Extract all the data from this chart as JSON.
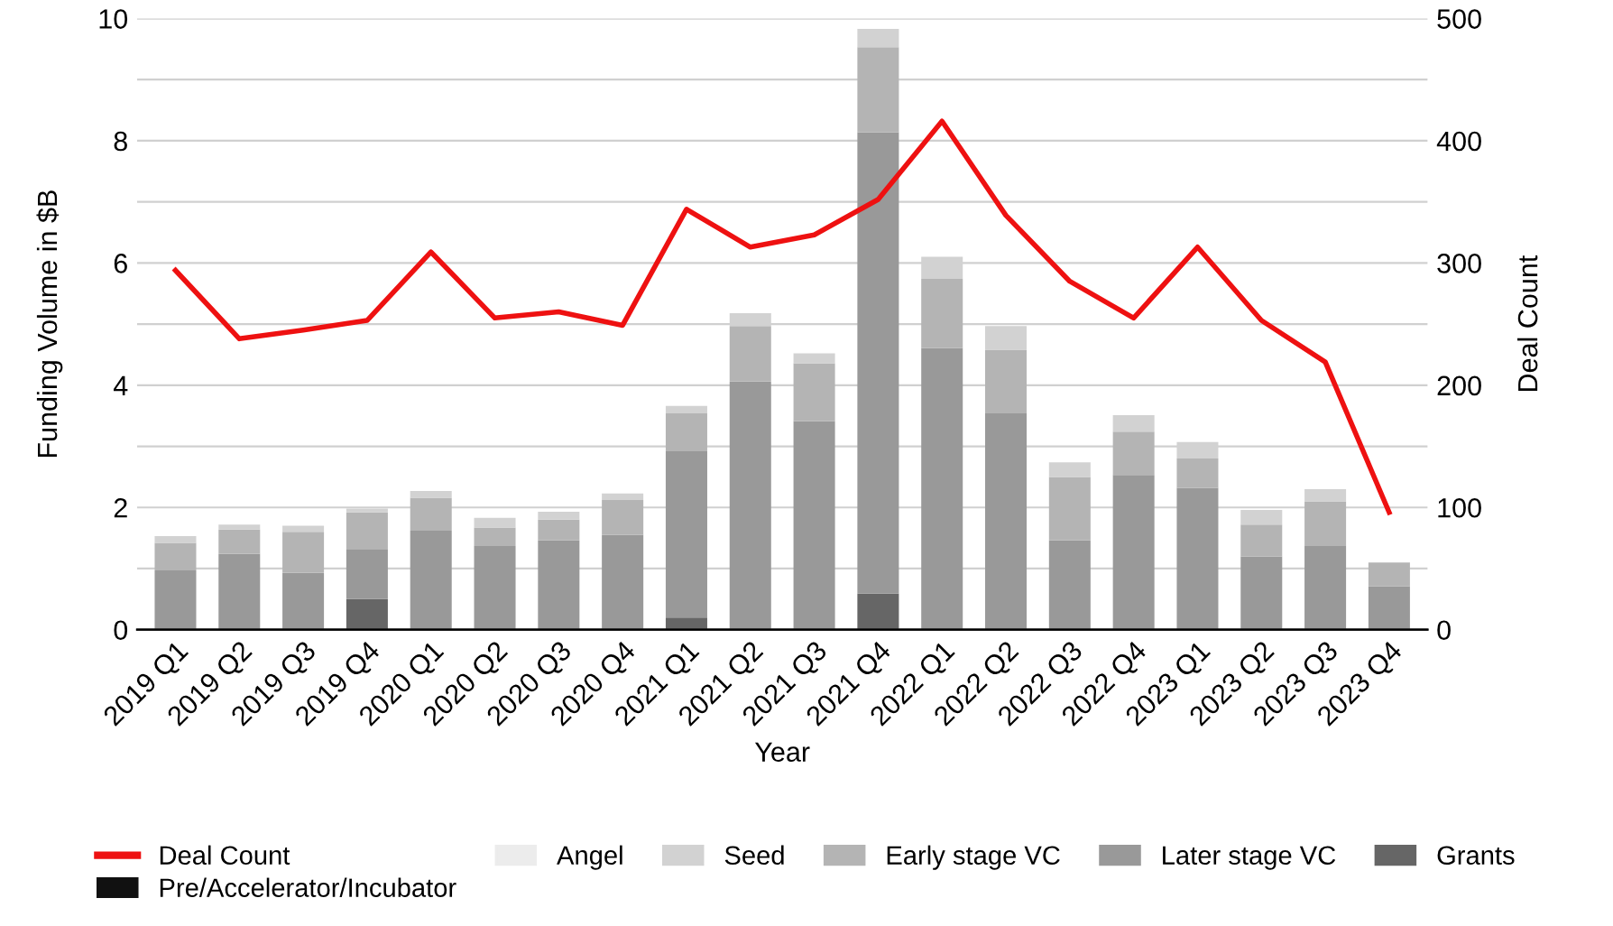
{
  "chart_data": {
    "type": "bar",
    "stacked": true,
    "xlabel": "Year",
    "ylabel": "Funding Volume in $B",
    "y2label": "Deal Count",
    "categories": [
      "2019 Q1",
      "2019 Q2",
      "2019 Q3",
      "2019 Q4",
      "2020 Q1",
      "2020 Q2",
      "2020 Q3",
      "2020 Q4",
      "2021 Q1",
      "2021 Q2",
      "2021 Q3",
      "2021 Q4",
      "2022 Q1",
      "2022 Q2",
      "2022 Q3",
      "2022 Q4",
      "2023 Q1",
      "2023 Q2",
      "2023 Q3",
      "2023 Q4"
    ],
    "series": [
      {
        "name": "Pre/Accelerator/Incubator",
        "color": "#111111",
        "values": [
          null,
          null,
          null,
          null,
          null,
          null,
          null,
          null,
          null,
          null,
          null,
          null,
          null,
          null,
          null,
          null,
          null,
          null,
          null,
          null
        ]
      },
      {
        "name": "Grants",
        "color": "#666666",
        "values": [
          null,
          null,
          null,
          0.5,
          null,
          null,
          null,
          null,
          0.2,
          null,
          null,
          0.59,
          null,
          null,
          null,
          null,
          null,
          null,
          null,
          null
        ]
      },
      {
        "name": "Later stage VC",
        "color": "#999999",
        "values": [
          0.97,
          1.24,
          0.93,
          0.82,
          1.62,
          1.37,
          1.46,
          1.55,
          2.72,
          4.06,
          3.41,
          7.55,
          4.61,
          3.54,
          1.46,
          2.53,
          2.32,
          1.2,
          1.37,
          0.71
        ]
      },
      {
        "name": "Early stage VC",
        "color": "#b4b4b4",
        "values": [
          0.45,
          0.4,
          0.67,
          0.6,
          0.54,
          0.3,
          0.34,
          0.57,
          0.62,
          0.91,
          0.95,
          1.39,
          1.13,
          1.04,
          1.04,
          0.71,
          0.48,
          0.52,
          0.73,
          0.39
        ]
      },
      {
        "name": "Seed",
        "color": "#d2d2d2",
        "values": [
          0.11,
          0.08,
          0.1,
          0.06,
          0.11,
          0.16,
          0.13,
          0.11,
          0.12,
          0.21,
          0.16,
          0.3,
          0.36,
          0.39,
          0.24,
          0.27,
          0.27,
          0.24,
          0.2,
          null
        ]
      },
      {
        "name": "Angel",
        "color": "#ececec",
        "values": [
          null,
          null,
          null,
          null,
          null,
          null,
          null,
          null,
          null,
          null,
          null,
          null,
          null,
          null,
          null,
          null,
          null,
          null,
          null,
          null
        ]
      },
      {
        "name": "Deal Count",
        "type": "line",
        "axis": "y2",
        "color": "#ee1111",
        "values": [
          294,
          238,
          245,
          253,
          309,
          255,
          260,
          249,
          344,
          313,
          323,
          352,
          416,
          339,
          285,
          255,
          313,
          253,
          219,
          96
        ]
      }
    ],
    "ylim": [
      0,
      10
    ],
    "yticks": [
      0,
      {
        "value": 1,
        "label": null
      },
      2,
      {
        "value": 3,
        "label": null
      },
      4,
      {
        "value": 5,
        "label": null
      },
      6,
      {
        "value": 7,
        "label": null
      },
      8,
      {
        "value": 9,
        "label": null
      },
      10
    ],
    "y2lim": [
      0,
      500
    ],
    "y2ticks": [
      0,
      100,
      200,
      300,
      400,
      500
    ],
    "grid": "y",
    "legend": "bottom"
  }
}
